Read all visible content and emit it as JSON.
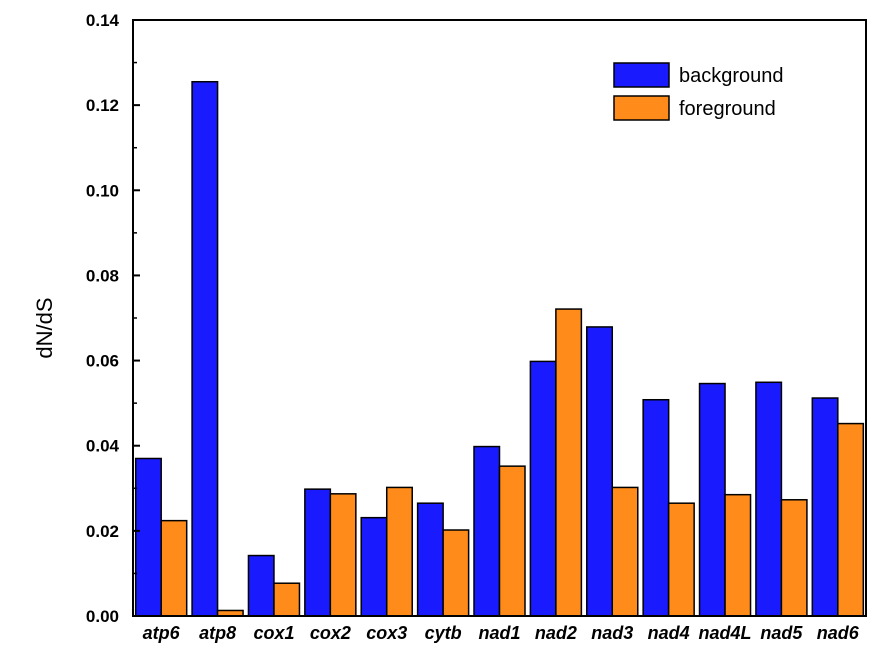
{
  "chart_data": {
    "type": "bar",
    "title": "",
    "xlabel": "",
    "ylabel": "dN/dS",
    "ylim": [
      0,
      0.14
    ],
    "y_ticks": [
      "0.00",
      "0.02",
      "0.04",
      "0.06",
      "0.08",
      "0.10",
      "0.12",
      "0.14"
    ],
    "y_tick_values": [
      0,
      0.02,
      0.04,
      0.06,
      0.08,
      0.1,
      0.12,
      0.14
    ],
    "categories": [
      "atp6",
      "atp8",
      "cox1",
      "cox2",
      "cox3",
      "cytb",
      "nad1",
      "nad2",
      "nad3",
      "nad4",
      "nad4L",
      "nad5",
      "nad6"
    ],
    "series": [
      {
        "name": "background",
        "color": "#1a1aff",
        "values": [
          0.037,
          0.1255,
          0.0142,
          0.0298,
          0.0231,
          0.0265,
          0.0398,
          0.0598,
          0.0679,
          0.0508,
          0.0546,
          0.0549,
          0.0512
        ]
      },
      {
        "name": "foreground",
        "color": "#ff8c1a",
        "values": [
          0.0224,
          0.0013,
          0.0077,
          0.0287,
          0.0302,
          0.0202,
          0.0352,
          0.0721,
          0.0302,
          0.0265,
          0.0285,
          0.0273,
          0.0452
        ]
      }
    ],
    "legend_position": "top-right",
    "grid": false
  }
}
